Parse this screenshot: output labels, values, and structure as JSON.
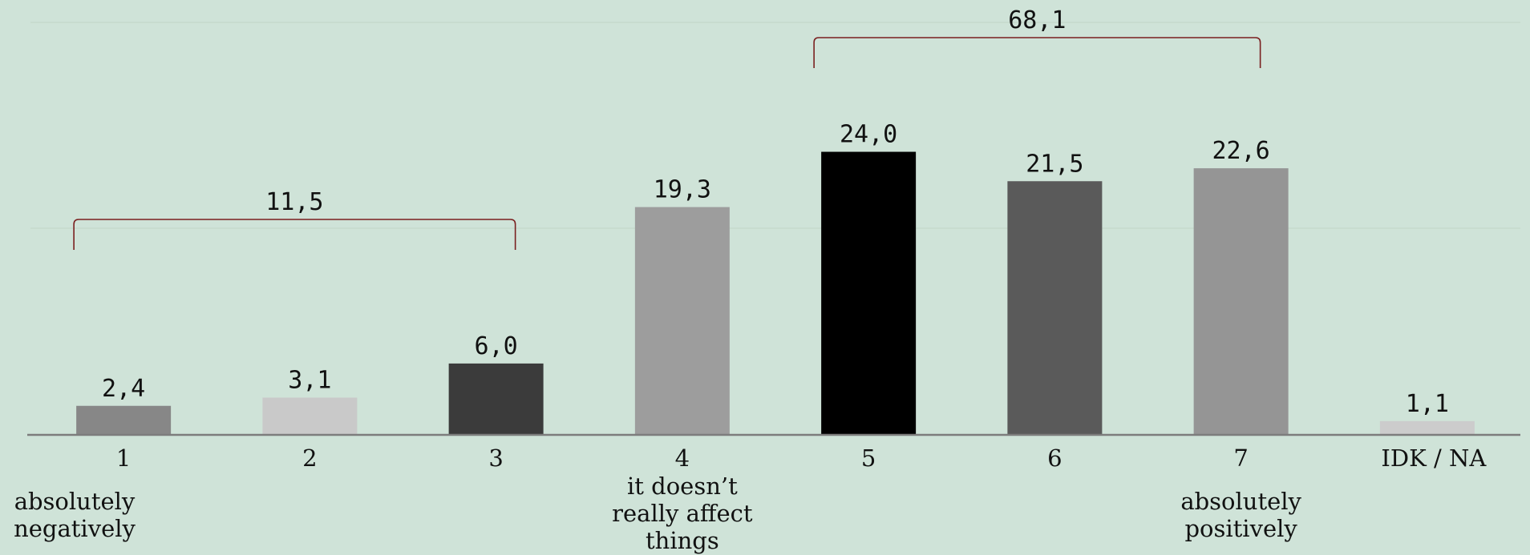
{
  "chart_data": {
    "type": "bar",
    "categories": [
      "1",
      "2",
      "3",
      "4",
      "5",
      "6",
      "7",
      "IDK / NA"
    ],
    "values": [
      2.4,
      3.1,
      6.0,
      19.3,
      24.0,
      21.5,
      22.6,
      1.1
    ],
    "value_labels": [
      "2,4",
      "3,1",
      "6,0",
      "19,3",
      "24,0",
      "21,5",
      "22,6",
      "1,1"
    ],
    "bar_colors": [
      "#878787",
      "#c9c9c9",
      "#3b3b3b",
      "#9d9d9d",
      "#000000",
      "#5a5a5a",
      "#959595",
      "#cccccc"
    ],
    "category_notes": [
      [
        "absolutely",
        "negatively"
      ],
      [],
      [],
      [
        "it doesn’t",
        "really affect",
        "things"
      ],
      [],
      [],
      [
        "absolutely",
        "positively"
      ],
      []
    ],
    "brackets": [
      {
        "from": 0,
        "to": 2,
        "label": "11,5",
        "value": 11.5
      },
      {
        "from": 4,
        "to": 6,
        "label": "68,1",
        "value": 68.1
      }
    ],
    "title": "",
    "xlabel": "",
    "ylabel": "",
    "ylim": [
      0,
      35
    ],
    "gridlines": [
      17.5,
      35
    ],
    "grid": true,
    "legend": "none",
    "bracket_color": "#7a1f1f",
    "grid_color": "#c6d9cc",
    "axis_color": "#7d7d7d"
  }
}
